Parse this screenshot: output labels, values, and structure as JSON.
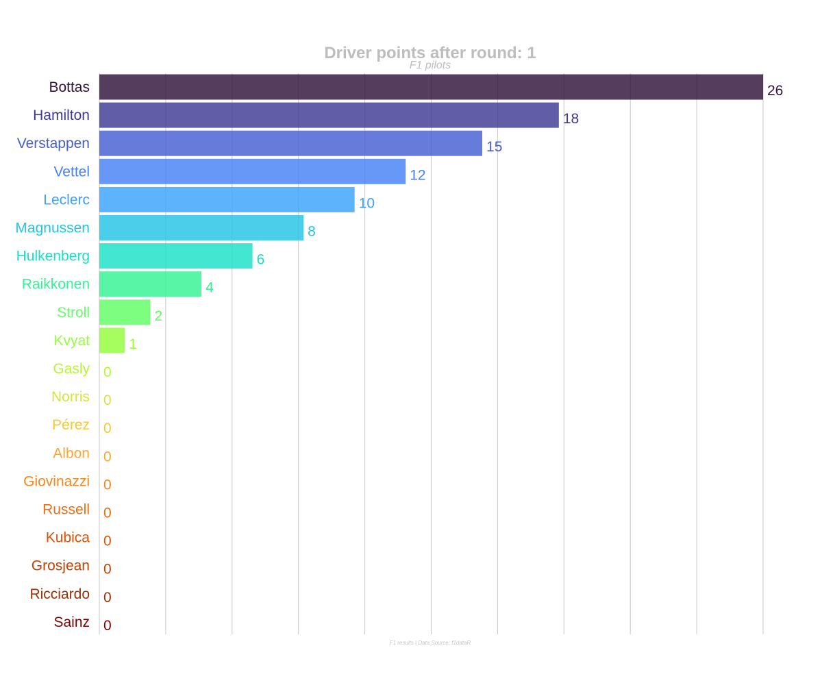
{
  "chart_data": {
    "type": "bar",
    "orientation": "horizontal",
    "title": "Driver points after round: 1",
    "subtitle": "F1 pilots",
    "caption": "F1 results | Data Source: f1dataR",
    "xlabel": "",
    "ylabel": "",
    "xlim": [
      0,
      26
    ],
    "grid": true,
    "categories": [
      "Bottas",
      "Hamilton",
      "Verstappen",
      "Vettel",
      "Leclerc",
      "Magnussen",
      "Hulkenberg",
      "Raikkonen",
      "Stroll",
      "Kvyat",
      "Gasly",
      "Norris",
      "Pérez",
      "Albon",
      "Giovinazzi",
      "Russell",
      "Kubica",
      "Grosjean",
      "Ricciardo",
      "Sainz"
    ],
    "values": [
      26,
      18,
      15,
      12,
      10,
      8,
      6,
      4,
      2,
      1,
      0,
      0,
      0,
      0,
      0,
      0,
      0,
      0,
      0,
      0
    ],
    "colors": [
      "#30123b",
      "#3e3994",
      "#455ed2",
      "#4681f7",
      "#3aa2fc",
      "#23c3e4",
      "#1ae0c6",
      "#35f393",
      "#62fe65",
      "#93fe3a",
      "#b7f635",
      "#d9e338",
      "#f2c93a",
      "#fda732",
      "#f9871f",
      "#ef6c12",
      "#dd5408",
      "#c34203",
      "#a02f03",
      "#7a0403"
    ]
  }
}
